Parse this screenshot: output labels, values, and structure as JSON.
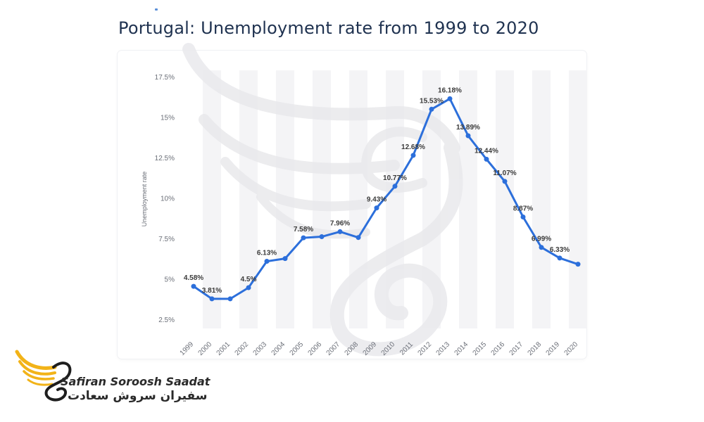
{
  "header": {
    "title": "Portugal: Unemployment rate from 1999 to 2020"
  },
  "brand": {
    "name_en": "Safiran Soroosh Saadat",
    "name_fa": "سفیران سروش سعادت",
    "accent_color": "#f2b318"
  },
  "chart_data": {
    "type": "line",
    "title": "Portugal: Unemployment rate from 1999 to 2020",
    "ylabel": "Unemployment rate",
    "xlabel": "",
    "ylim": [
      2.5,
      17.5
    ],
    "yticks": [
      2.5,
      5,
      7.5,
      10,
      12.5,
      15,
      17.5
    ],
    "ytick_labels": [
      "2.5%",
      "5%",
      "7.5%",
      "10%",
      "12.5%",
      "15%",
      "17.5%"
    ],
    "grid": "vertical bands",
    "line_color": "#2c6fdb",
    "categories": [
      "1999",
      "2000",
      "2001",
      "2002",
      "2003",
      "2004",
      "2005",
      "2006",
      "2007",
      "2008",
      "2009",
      "2010",
      "2011",
      "2012",
      "2013",
      "2014",
      "2015",
      "2016",
      "2017",
      "2018",
      "2019",
      "2020"
    ],
    "series": [
      {
        "values": [
          4.58,
          3.81,
          3.81,
          4.5,
          6.13,
          6.3,
          7.58,
          7.65,
          7.96,
          7.6,
          9.43,
          10.77,
          12.68,
          15.53,
          16.18,
          13.89,
          12.44,
          11.07,
          8.87,
          6.99,
          6.33,
          5.95
        ]
      }
    ],
    "data_labels": [
      {
        "index": 0,
        "text": "4.58%"
      },
      {
        "index": 1,
        "text": "3.81%"
      },
      {
        "index": 3,
        "text": "4.5%"
      },
      {
        "index": 4,
        "text": "6.13%"
      },
      {
        "index": 6,
        "text": "7.58%"
      },
      {
        "index": 8,
        "text": "7.96%"
      },
      {
        "index": 10,
        "text": "9.43%"
      },
      {
        "index": 11,
        "text": "10.77%"
      },
      {
        "index": 12,
        "text": "12.68%"
      },
      {
        "index": 13,
        "text": "15.53%"
      },
      {
        "index": 14,
        "text": "16.18%"
      },
      {
        "index": 15,
        "text": "13.89%"
      },
      {
        "index": 16,
        "text": "12.44%"
      },
      {
        "index": 17,
        "text": "11.07%"
      },
      {
        "index": 18,
        "text": "8.87%"
      },
      {
        "index": 19,
        "text": "6.99%"
      },
      {
        "index": 20,
        "text": "6.33%"
      }
    ]
  }
}
